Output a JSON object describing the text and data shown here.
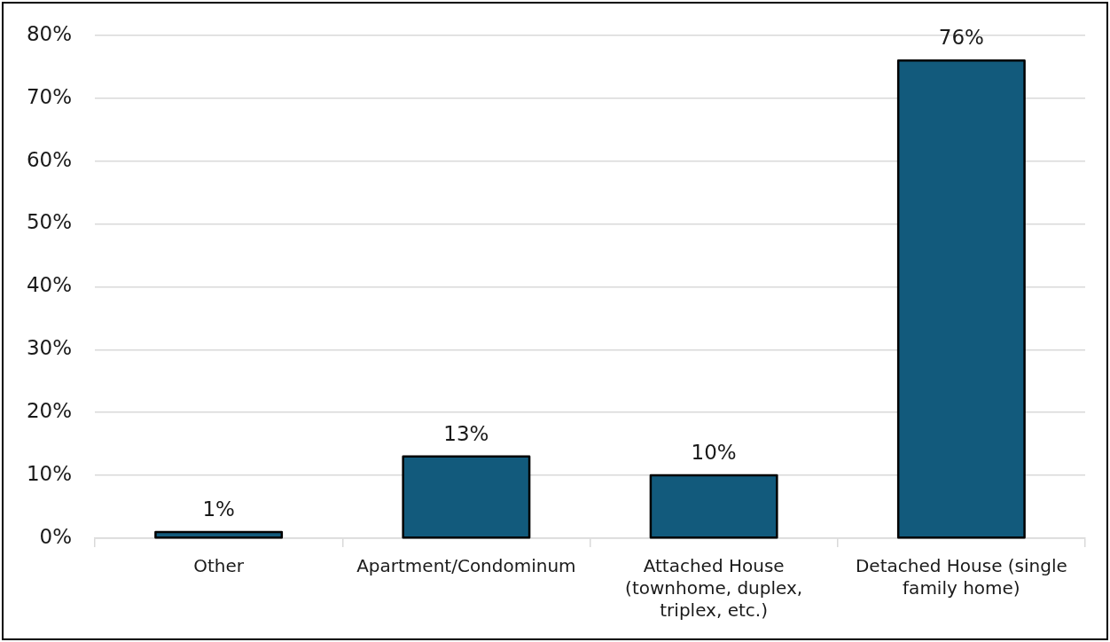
{
  "chart_data": {
    "type": "bar",
    "categories": [
      "Other",
      "Apartment/Condominum",
      "Attached House (townhome, duplex, triplex, etc.)",
      "Detached House (single family home)"
    ],
    "values": [
      1,
      13,
      10,
      76
    ],
    "color": "#125a7c",
    "value_labels": [
      "1%",
      "13%",
      "10%",
      "76%"
    ],
    "ylim": [
      0,
      80
    ],
    "yticks": [
      {
        "value": 0,
        "label": "0%"
      },
      {
        "value": 10,
        "label": "10%"
      },
      {
        "value": 20,
        "label": "20%"
      },
      {
        "value": 30,
        "label": "30%"
      },
      {
        "value": 40,
        "label": "40%"
      },
      {
        "value": 50,
        "label": "50%"
      },
      {
        "value": 60,
        "label": "60%"
      },
      {
        "value": 70,
        "label": "70%"
      },
      {
        "value": 80,
        "label": "80%"
      }
    ],
    "grid": "y"
  }
}
